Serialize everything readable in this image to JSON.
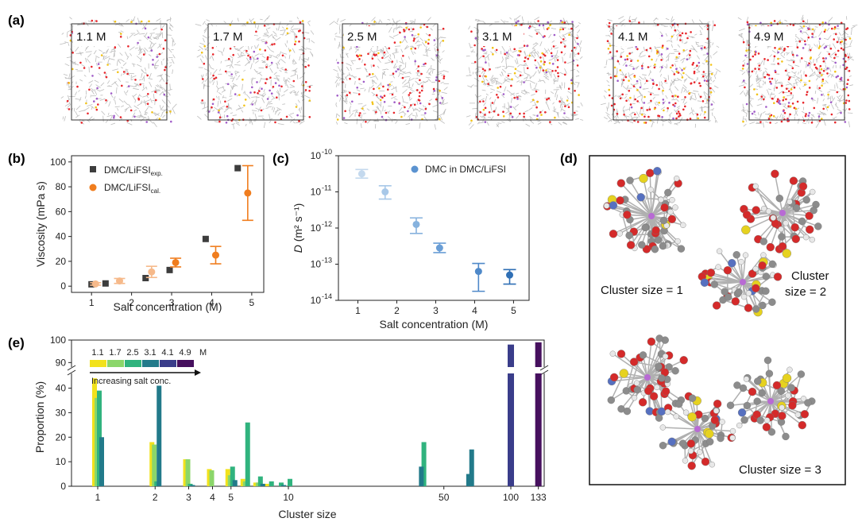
{
  "panels": {
    "a": {
      "label": "(a)",
      "snapshots": [
        "1.1 M",
        "1.7 M",
        "2.5 M",
        "3.1 M",
        "4.1 M",
        "4.9 M"
      ],
      "density": [
        1.1,
        1.7,
        2.5,
        3.1,
        4.1,
        4.9
      ]
    },
    "b": {
      "label": "(b)"
    },
    "c": {
      "label": "(c)"
    },
    "d": {
      "label": "(d)",
      "clusters": [
        {
          "label": "Cluster size = 1",
          "size": 1
        },
        {
          "label_lines": [
            "Cluster",
            "size = 2"
          ],
          "size": 2
        },
        {
          "label": "Cluster size = 3",
          "size": 3
        }
      ]
    },
    "e": {
      "label": "(e)"
    }
  },
  "colors": {
    "exp": "#3d3d3d",
    "cal": "#f07d1e",
    "cal_light": "#f6b98a",
    "dmc": [
      "#c4d9ee",
      "#a8c8e8",
      "#86b2de",
      "#6a9ed6",
      "#4f89c9",
      "#2f6fb5"
    ],
    "conc": [
      "#f2e21c",
      "#8bd66a",
      "#30b37e",
      "#227a8a",
      "#3a3d8a",
      "#46105e"
    ]
  },
  "chart_data": [
    {
      "id": "b",
      "type": "scatter",
      "xlabel": "Salt concentration (M)",
      "ylabel": "Viscosity (mPa s)",
      "xlim": [
        0.5,
        5.3
      ],
      "ylim": [
        -5,
        105
      ],
      "xticks": [
        "1",
        "2",
        "3",
        "4",
        "5"
      ],
      "yticks": [
        "0",
        "20",
        "40",
        "60",
        "80",
        "100"
      ],
      "legend_position": "top-left",
      "series": [
        {
          "name": "DMC/LiFSI",
          "sub": "exp.",
          "marker": "square",
          "x": [
            1.0,
            1.35,
            2.35,
            2.95,
            3.85,
            4.65
          ],
          "y": [
            1.5,
            2.2,
            6.5,
            13.0,
            38.0,
            95.0
          ]
        },
        {
          "name": "DMC/LiFSI",
          "sub": "cal.",
          "marker": "circle",
          "x": [
            1.1,
            1.7,
            2.5,
            3.1,
            4.1,
            4.9
          ],
          "y": [
            1.8,
            4.2,
            11.5,
            19.0,
            25.0,
            75.0
          ],
          "err": [
            1.0,
            2.0,
            4.5,
            3.5,
            7.0,
            22.0
          ]
        }
      ]
    },
    {
      "id": "c",
      "type": "scatter",
      "scale": "log",
      "xlabel": "Salt concentration (M)",
      "ylabel_main": "D",
      "ylabel_unit": " (m² s⁻¹)",
      "xlim": [
        0.5,
        5.4
      ],
      "ylim_exp": [
        -14,
        -10
      ],
      "xticks": [
        "1",
        "2",
        "3",
        "4",
        "5"
      ],
      "yticks": [
        {
          "base": "10",
          "exp": "-14",
          "v": -14
        },
        {
          "base": "10",
          "exp": "-13",
          "v": -13
        },
        {
          "base": "10",
          "exp": "-12",
          "v": -12
        },
        {
          "base": "10",
          "exp": "-11",
          "v": -11
        },
        {
          "base": "10",
          "exp": "-10",
          "v": -10
        }
      ],
      "legend_position": "top-right",
      "series": [
        {
          "name": "DMC in DMC/LiFSI",
          "x": [
            1.1,
            1.7,
            2.5,
            3.1,
            4.1,
            4.9
          ],
          "log_y": [
            -10.5,
            -11.0,
            -11.9,
            -12.55,
            -13.2,
            -13.3
          ],
          "log_lo": [
            -10.62,
            -11.2,
            -12.15,
            -12.68,
            -13.75,
            -13.55
          ],
          "log_hi": [
            -10.38,
            -10.83,
            -11.72,
            -12.42,
            -12.98,
            -13.15
          ]
        }
      ]
    },
    {
      "id": "e",
      "type": "bar",
      "xlabel": "Cluster size",
      "ylabel": "Proportion (%)",
      "upper_yticks": [
        "90",
        "100"
      ],
      "lower_yticks": [
        "0",
        "10",
        "20",
        "30",
        "40"
      ],
      "x_tick_labels": [
        {
          "t": "1",
          "v": 1
        },
        {
          "t": "2",
          "v": 2
        },
        {
          "t": "3",
          "v": 3
        },
        {
          "t": "4",
          "v": 4
        },
        {
          "t": "5",
          "v": 5
        },
        {
          "t": "10",
          "v": 10
        },
        {
          "t": "50",
          "v": 50
        },
        {
          "t": "100",
          "v": 100
        },
        {
          "t": "133",
          "v": 133
        }
      ],
      "legend_labels": [
        "1.1",
        "1.7",
        "2.5",
        "3.1",
        "4.1",
        "4.9"
      ],
      "legend_unit": "M",
      "arrow_label": "Increasing salt conc.",
      "series": [
        {
          "name": "1.1",
          "values": [
            [
              1,
              44
            ],
            [
              2,
              18
            ],
            [
              3,
              11
            ],
            [
              4,
              7
            ],
            [
              5,
              7
            ],
            [
              6,
              3
            ],
            [
              7,
              1.5
            ],
            [
              8,
              1
            ]
          ]
        },
        {
          "name": "1.7",
          "values": [
            [
              1,
              36
            ],
            [
              2,
              17
            ],
            [
              3,
              11
            ],
            [
              4,
              6.5
            ],
            [
              5,
              4.5
            ],
            [
              6,
              2
            ],
            [
              7,
              1.5
            ]
          ]
        },
        {
          "name": "2.5",
          "values": [
            [
              1,
              39
            ],
            [
              2,
              2
            ],
            [
              3,
              1
            ],
            [
              5,
              8
            ],
            [
              6,
              26
            ],
            [
              7,
              4
            ],
            [
              8,
              2
            ],
            [
              9,
              1.5
            ],
            [
              10,
              3
            ],
            [
              40,
              18
            ]
          ]
        },
        {
          "name": "3.1",
          "values": [
            [
              1,
              20
            ],
            [
              2,
              41
            ],
            [
              3,
              0.5
            ],
            [
              5,
              2.5
            ],
            [
              7,
              1
            ],
            [
              9,
              0.5
            ],
            [
              38,
              8
            ],
            [
              62,
              5
            ],
            [
              64,
              15
            ]
          ]
        },
        {
          "name": "4.1",
          "values": [
            [
              100,
              98
            ]
          ]
        },
        {
          "name": "4.9",
          "values": [
            [
              133,
              99
            ]
          ]
        }
      ]
    }
  ]
}
